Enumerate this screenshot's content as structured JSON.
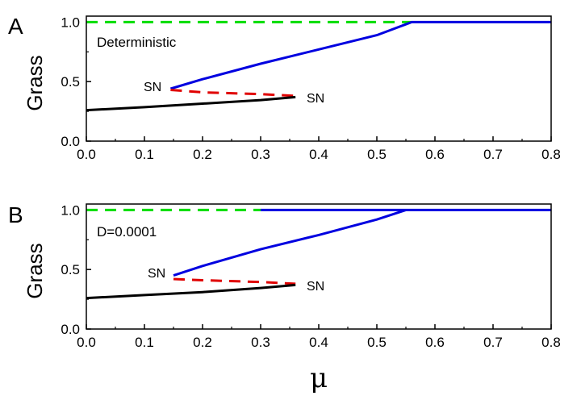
{
  "chart_data": [
    {
      "type": "line",
      "panel_label": "A",
      "annotation": "Deterministic",
      "ylabel": "Grass",
      "xlabel": "",
      "xlim": [
        0.0,
        0.8
      ],
      "ylim": [
        0.0,
        1.05
      ],
      "xticks": [
        "0.0",
        "0.1",
        "0.2",
        "0.3",
        "0.4",
        "0.5",
        "0.6",
        "0.7",
        "0.8"
      ],
      "yticks": [
        "0.0",
        "0.5",
        "1.0"
      ],
      "sn_labels": [
        "SN",
        "SN"
      ],
      "sn_points": [
        [
          0.145,
          0.44
        ],
        [
          0.36,
          0.375
        ]
      ],
      "series": [
        {
          "color": "#00dd00",
          "dash": true,
          "points": [
            [
              0.0,
              1.0
            ],
            [
              0.56,
              1.0
            ]
          ]
        },
        {
          "color": "#0000e0",
          "dash": false,
          "points": [
            [
              0.145,
              0.44
            ],
            [
              0.2,
              0.52
            ],
            [
              0.3,
              0.65
            ],
            [
              0.4,
              0.77
            ],
            [
              0.5,
              0.89
            ],
            [
              0.56,
              1.0
            ],
            [
              0.8,
              1.0
            ]
          ]
        },
        {
          "color": "#e00000",
          "dash": true,
          "points": [
            [
              0.145,
              0.43
            ],
            [
              0.2,
              0.41
            ],
            [
              0.3,
              0.395
            ],
            [
              0.36,
              0.38
            ]
          ]
        },
        {
          "color": "#000000",
          "dash": false,
          "points": [
            [
              0.0,
              0.26
            ],
            [
              0.1,
              0.285
            ],
            [
              0.2,
              0.315
            ],
            [
              0.3,
              0.345
            ],
            [
              0.36,
              0.37
            ]
          ]
        }
      ]
    },
    {
      "type": "line",
      "panel_label": "B",
      "annotation": "D=0.0001",
      "ylabel": "Grass",
      "xlabel": "μ",
      "xlim": [
        0.0,
        0.8
      ],
      "ylim": [
        0.0,
        1.05
      ],
      "xticks": [
        "0.0",
        "0.1",
        "0.2",
        "0.3",
        "0.4",
        "0.5",
        "0.6",
        "0.7",
        "0.8"
      ],
      "yticks": [
        "0.0",
        "0.5",
        "1.0"
      ],
      "sn_labels": [
        "SN",
        "SN"
      ],
      "sn_points": [
        [
          0.15,
          0.45
        ],
        [
          0.36,
          0.38
        ]
      ],
      "series": [
        {
          "color": "#00dd00",
          "dash": true,
          "points": [
            [
              0.0,
              1.0
            ],
            [
              0.3,
              1.0
            ]
          ]
        },
        {
          "color": "#0000e0",
          "dash": false,
          "points": [
            [
              0.3,
              1.0
            ],
            [
              0.8,
              1.0
            ]
          ]
        },
        {
          "color": "#0000e0",
          "dash": false,
          "points": [
            [
              0.15,
              0.45
            ],
            [
              0.2,
              0.53
            ],
            [
              0.3,
              0.67
            ],
            [
              0.4,
              0.79
            ],
            [
              0.5,
              0.92
            ],
            [
              0.55,
              1.0
            ]
          ]
        },
        {
          "color": "#e00000",
          "dash": true,
          "points": [
            [
              0.15,
              0.42
            ],
            [
              0.2,
              0.41
            ],
            [
              0.3,
              0.395
            ],
            [
              0.36,
              0.38
            ]
          ]
        },
        {
          "color": "#000000",
          "dash": false,
          "points": [
            [
              0.0,
              0.26
            ],
            [
              0.1,
              0.285
            ],
            [
              0.2,
              0.31
            ],
            [
              0.3,
              0.345
            ],
            [
              0.36,
              0.37
            ]
          ]
        }
      ]
    }
  ]
}
